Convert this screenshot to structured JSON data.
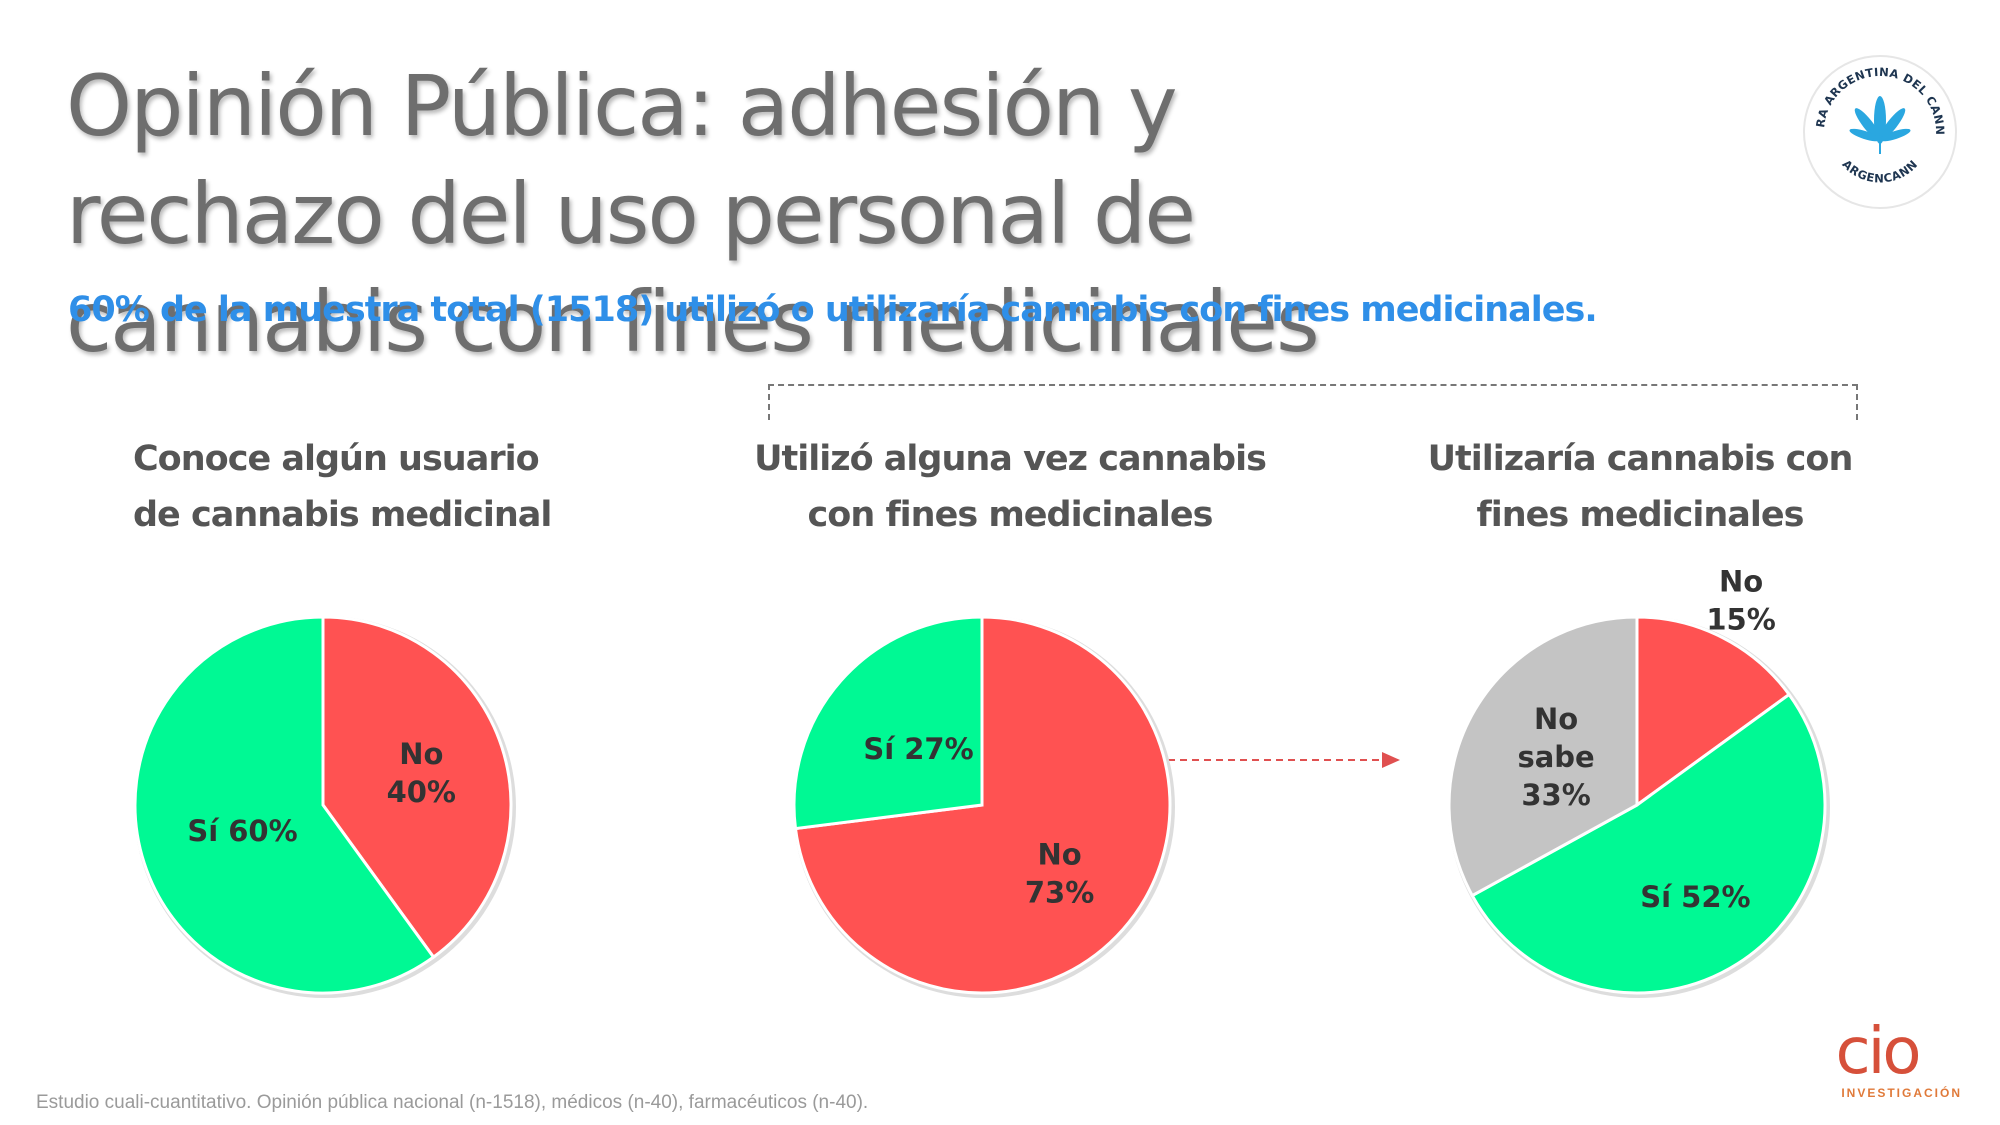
{
  "header": {
    "title": "Opinión Pública: adhesión y rechazo del uso personal de cannabis con fines medicinales",
    "subtitle": "60% de la muestra total (1518) utilizó o utilizaría cannabis con fines medicinales."
  },
  "logo": {
    "text_top": "CAMARA ARGENTINA DEL CANNABIS",
    "text_bottom": "ARGENCANN",
    "icon": "cannabis-leaf-icon",
    "color": "#2aa7e0"
  },
  "colors": {
    "si": "#00f994",
    "no": "#ff5252",
    "no_sabe": "#c4c4c4",
    "label": "#333333"
  },
  "chart_data": [
    {
      "type": "pie",
      "title_lines": [
        "Conoce algún usuario",
        "de cannabis medicinal"
      ],
      "slices": [
        {
          "key": "no",
          "name": "No",
          "value": 40,
          "label_lines": [
            "No",
            "40%"
          ]
        },
        {
          "key": "si",
          "name": "Sí",
          "value": 60,
          "label_lines": [
            "Sí 60%"
          ]
        }
      ]
    },
    {
      "type": "pie",
      "title_lines": [
        "Utilizó alguna vez cannabis",
        "con fines medicinales"
      ],
      "slices": [
        {
          "key": "no",
          "name": "No",
          "value": 73,
          "label_lines": [
            "No",
            "73%"
          ]
        },
        {
          "key": "si",
          "name": "Sí",
          "value": 27,
          "label_lines": [
            "Sí 27%"
          ]
        }
      ]
    },
    {
      "type": "pie",
      "title_lines": [
        "Utilizaría cannabis con",
        "fines medicinales"
      ],
      "slices": [
        {
          "key": "no",
          "name": "No",
          "value": 15,
          "label_lines": [
            "No",
            "15%"
          ]
        },
        {
          "key": "si",
          "name": "Sí",
          "value": 52,
          "label_lines": [
            "Sí 52%"
          ]
        },
        {
          "key": "no_sabe",
          "name": "No sabe",
          "value": 33,
          "label_lines": [
            "No",
            "sabe",
            "33%"
          ]
        }
      ]
    }
  ],
  "footer": {
    "footnote": "Estudio cuali-cuantitativo. Opinión pública nacional (n-1518), médicos (n-40), farmacéuticos (n-40).",
    "brand_word": "cio",
    "brand_sub": "INVESTIGACIÓN"
  }
}
